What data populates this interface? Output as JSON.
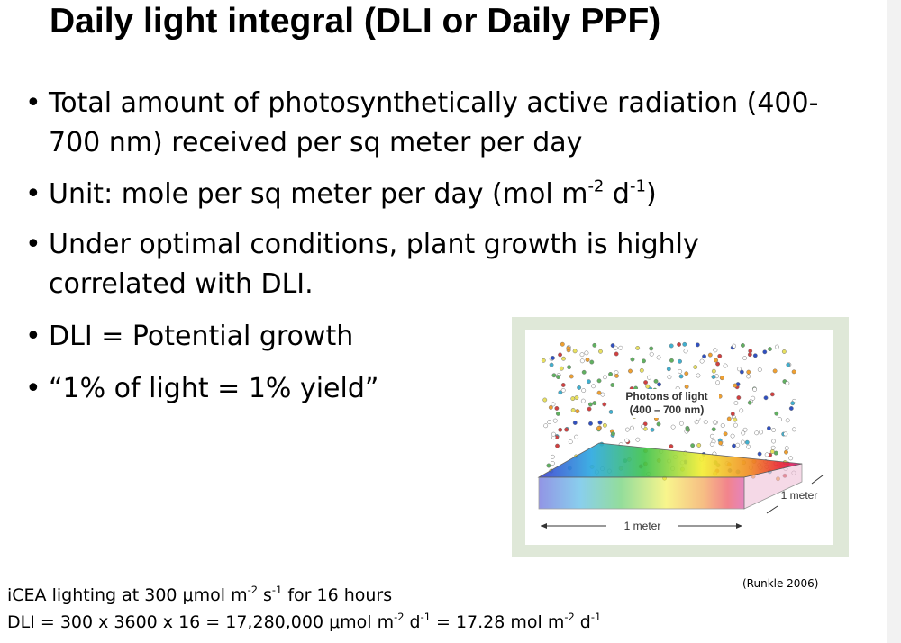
{
  "title": "Daily light integral (DLI or Daily PPF)",
  "bullets": [
    {
      "parts": [
        "Total amount of photosynthetically active radiation (400-700 nm) received per sq meter per day"
      ]
    },
    {
      "parts": [
        "Unit: mole per sq meter per day (mol m",
        "-2",
        " d",
        "-1",
        ")"
      ]
    },
    {
      "parts": [
        "Under optimal conditions, plant growth is highly correlated with DLI."
      ]
    },
    {
      "parts": [
        "DLI = Potential growth"
      ]
    },
    {
      "parts": [
        "“1% of light = 1% yield”"
      ]
    }
  ],
  "figure": {
    "photons_label": "Photons of light",
    "wavelength_label": "(400 – 700 nm)",
    "width_label": "1 meter",
    "depth_label": "1 meter"
  },
  "citation": "(Runkle 2006)",
  "footer": [
    [
      "iCEA lighting at 300 μmol m",
      "-2",
      " s",
      "-1",
      " for 16 hours"
    ],
    [
      "DLI = 300 x 3600 x 16 = 17,280,000 μmol m",
      "-2",
      " d",
      "-1",
      " = 17.28 mol m",
      "-2",
      " d",
      "-1"
    ]
  ]
}
